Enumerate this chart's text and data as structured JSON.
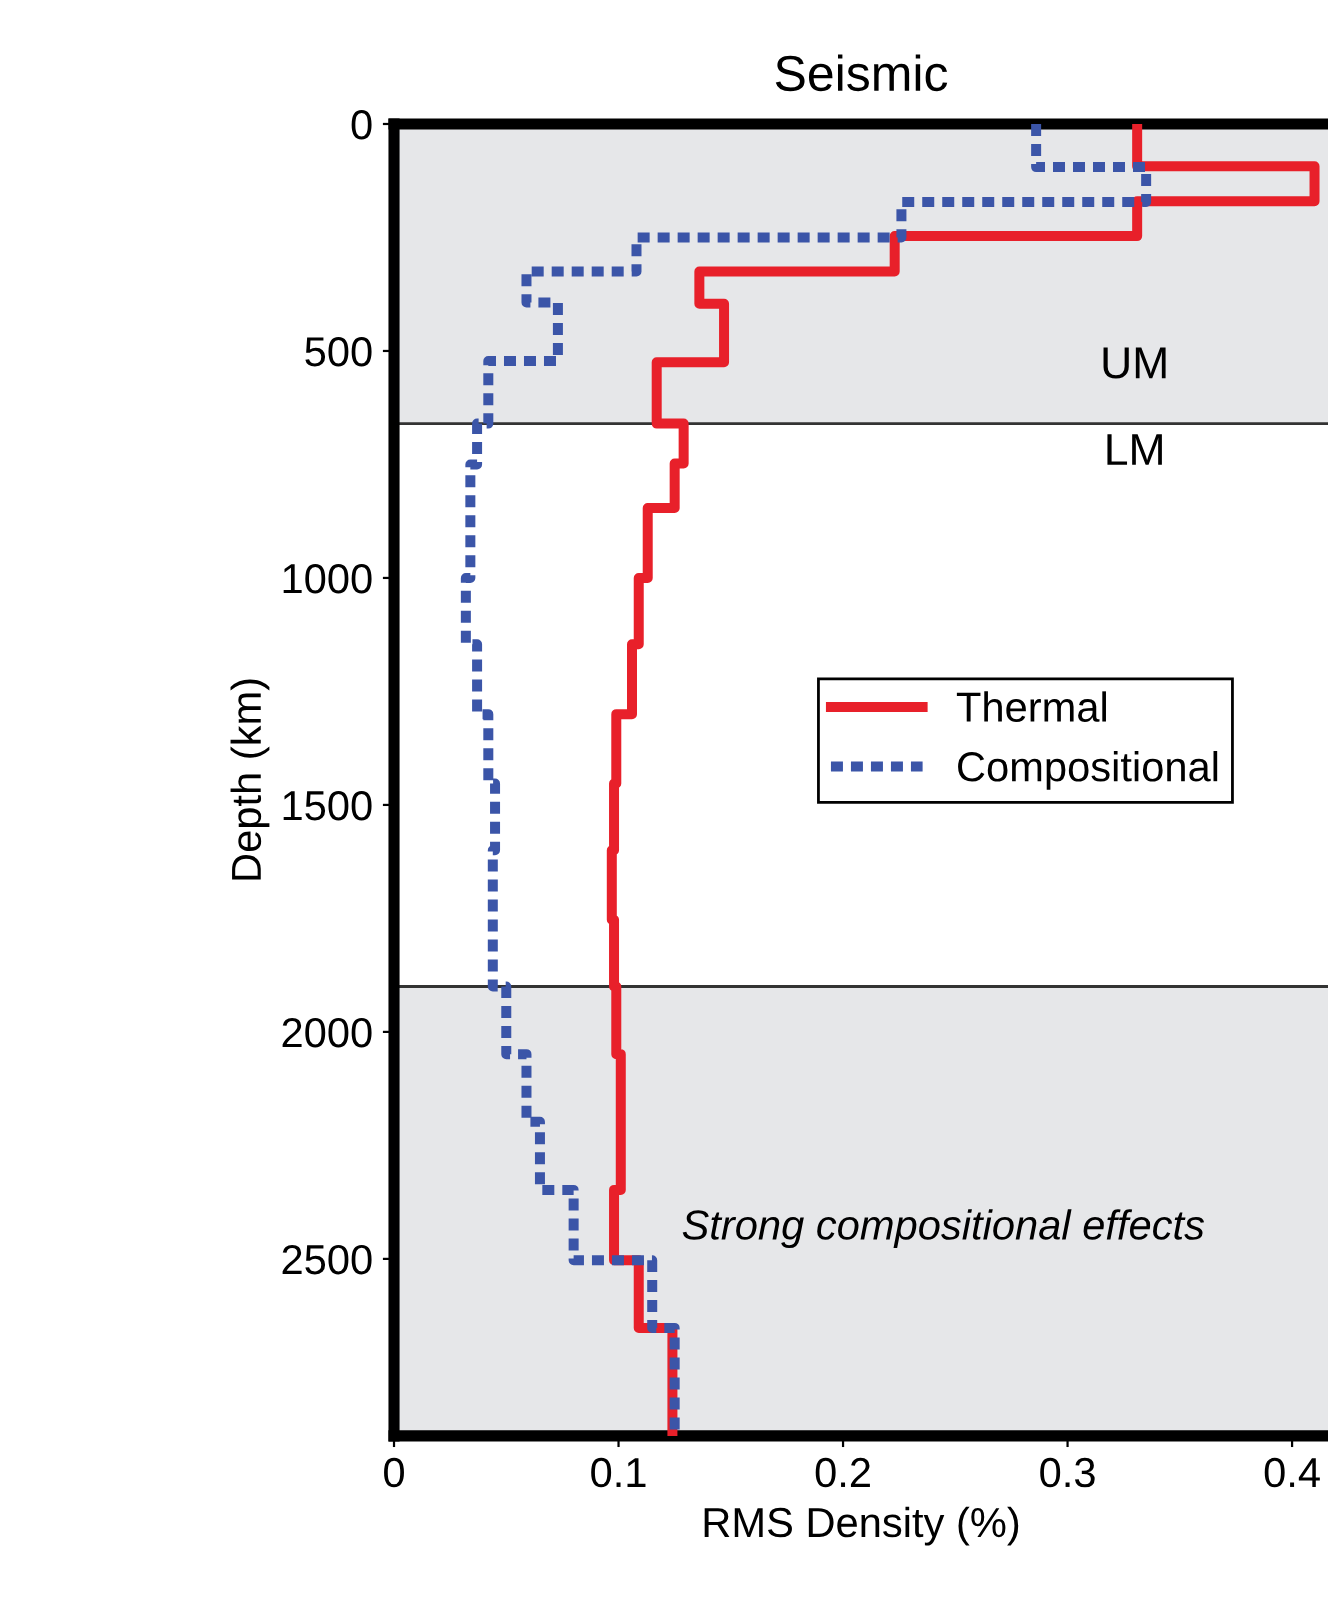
{
  "chart_data": {
    "type": "line",
    "title": "Seismic",
    "xlabel": "RMS Density (%)",
    "ylabel": "Depth (km)",
    "xlim": [
      0,
      0.416
    ],
    "xticks": [
      0,
      0.1,
      0.2,
      0.3,
      0.4
    ],
    "ylim": [
      2890,
      0
    ],
    "yticks": [
      0,
      500,
      1000,
      1500,
      2000,
      2500
    ],
    "grid": false,
    "legend": "center right",
    "series": [
      {
        "name": "Thermal",
        "color": "#e8202a",
        "line_style": "solid",
        "x": [
          0.331,
          0.331,
          0.41,
          0.41,
          0.331,
          0.331,
          0.223,
          0.223,
          0.136,
          0.136,
          0.147,
          0.147,
          0.117,
          0.117,
          0.129,
          0.129,
          0.125,
          0.125,
          0.113,
          0.113,
          0.109,
          0.109,
          0.106,
          0.106,
          0.099,
          0.099,
          0.098,
          0.098,
          0.097,
          0.097,
          0.098,
          0.098,
          0.099,
          0.099,
          0.101,
          0.101,
          0.098,
          0.098,
          0.109,
          0.109,
          0.124,
          0.124
        ],
        "values": [
          0,
          93,
          93,
          170,
          170,
          247,
          247,
          325,
          325,
          396,
          396,
          525,
          525,
          660,
          660,
          748,
          748,
          846,
          846,
          1000,
          1000,
          1146,
          1146,
          1300,
          1300,
          1453,
          1453,
          1600,
          1600,
          1753,
          1753,
          1900,
          1900,
          2049,
          2049,
          2348,
          2348,
          2503,
          2503,
          2652,
          2652,
          2890
        ]
      },
      {
        "name": "Compositional",
        "color": "#3b55a8",
        "line_style": "dashed",
        "x": [
          0.286,
          0.286,
          0.335,
          0.335,
          0.226,
          0.226,
          0.108,
          0.108,
          0.059,
          0.059,
          0.073,
          0.073,
          0.042,
          0.042,
          0.037,
          0.037,
          0.034,
          0.034,
          0.032,
          0.032,
          0.037,
          0.037,
          0.042,
          0.042,
          0.045,
          0.045,
          0.044,
          0.044,
          0.05,
          0.05,
          0.059,
          0.059,
          0.065,
          0.065,
          0.08,
          0.08,
          0.115,
          0.115,
          0.125,
          0.125
        ],
        "values": [
          0,
          95,
          95,
          172,
          172,
          250,
          250,
          325,
          325,
          393,
          393,
          522,
          522,
          660,
          660,
          750,
          750,
          1000,
          1000,
          1146,
          1146,
          1300,
          1300,
          1453,
          1453,
          1600,
          1600,
          1900,
          1900,
          2049,
          2049,
          2198,
          2198,
          2348,
          2348,
          2503,
          2503,
          2652,
          2652,
          2890
        ]
      }
    ],
    "bands": [
      {
        "axis": "y",
        "from": 0,
        "to": 660,
        "color": "#e6e7e9"
      },
      {
        "axis": "y",
        "from": 1900,
        "to": 2890,
        "color": "#e6e7e9"
      }
    ],
    "ref_lines": [
      {
        "axis": "y",
        "value": 660,
        "color": "#333333"
      },
      {
        "axis": "y",
        "value": 1900,
        "color": "#333333"
      }
    ],
    "annotations": [
      "UM",
      "LM",
      "Strong compositional effects"
    ]
  }
}
